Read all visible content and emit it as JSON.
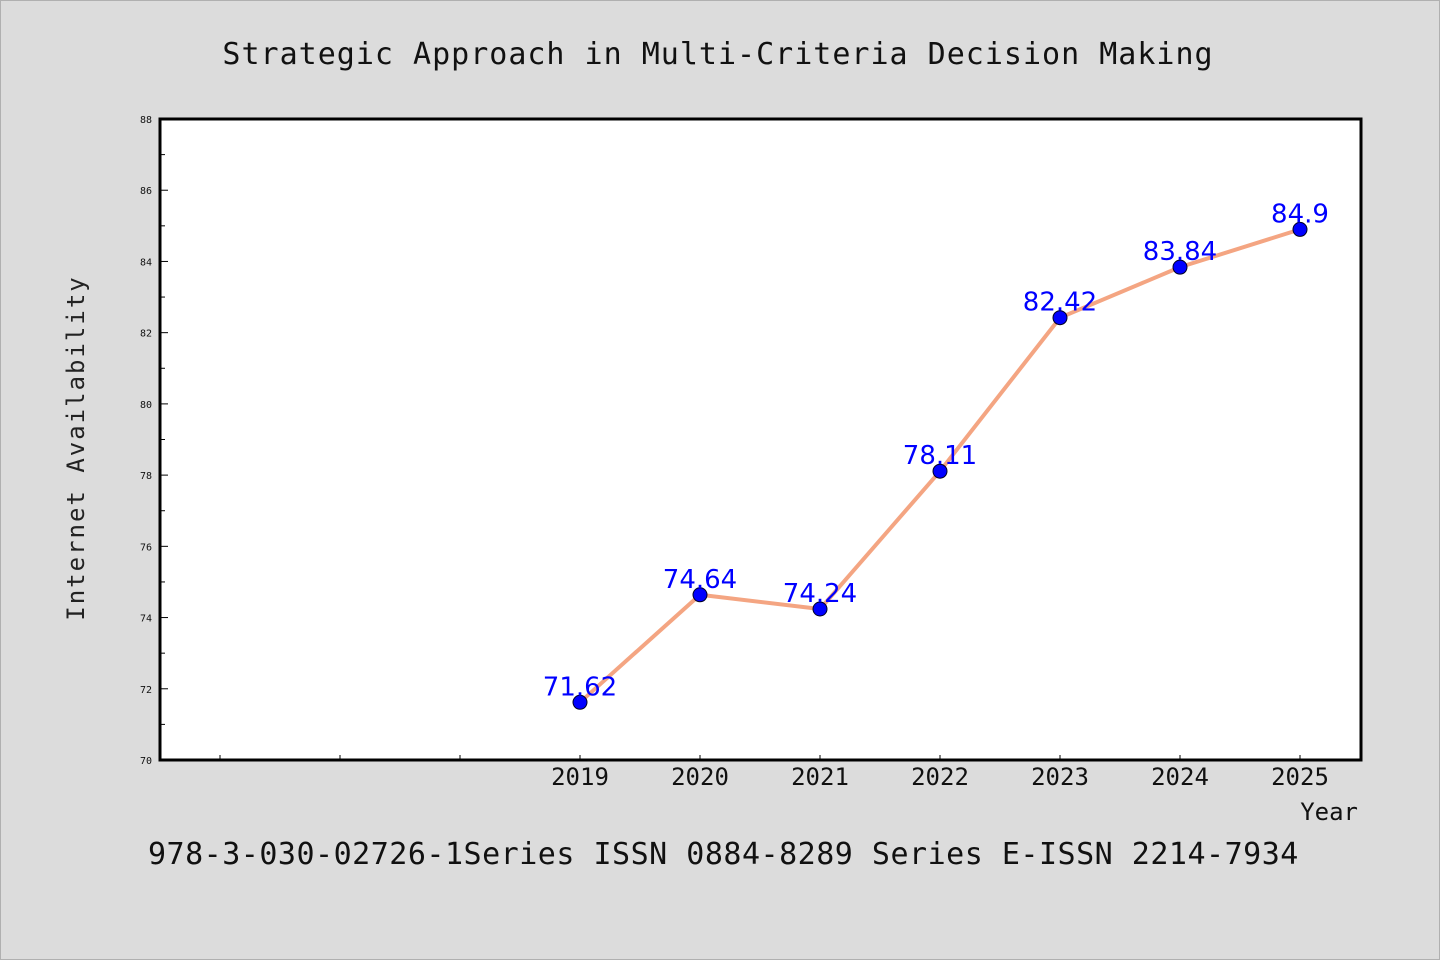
{
  "chart_data": {
    "type": "line",
    "title": "Strategic Approach in Multi-Criteria Decision Making",
    "xlabel": "Year",
    "ylabel": "Internet Availability",
    "categories": [
      "2019",
      "2020",
      "2021",
      "2022",
      "2023",
      "2024",
      "2025"
    ],
    "series": [
      {
        "values": [
          71.62,
          74.64,
          74.24,
          78.11,
          82.42,
          83.84,
          84.9
        ],
        "data_labels": [
          "71.62",
          "74.64",
          "74.24",
          "78.11",
          "82.42",
          "83.84",
          "84.9"
        ]
      }
    ],
    "ylim": [
      70,
      88
    ],
    "yticks": [
      "70",
      "72",
      "74",
      "76",
      "78",
      "80",
      "82",
      "84",
      "86",
      "88"
    ],
    "grid": false,
    "legend": "none",
    "line_color": "#f4a582",
    "marker_color": "#0000ff"
  },
  "footer": {
    "text": "978-3-030-02726-1Series ISSN 0884-8289 Series E-ISSN 2214-7934"
  }
}
